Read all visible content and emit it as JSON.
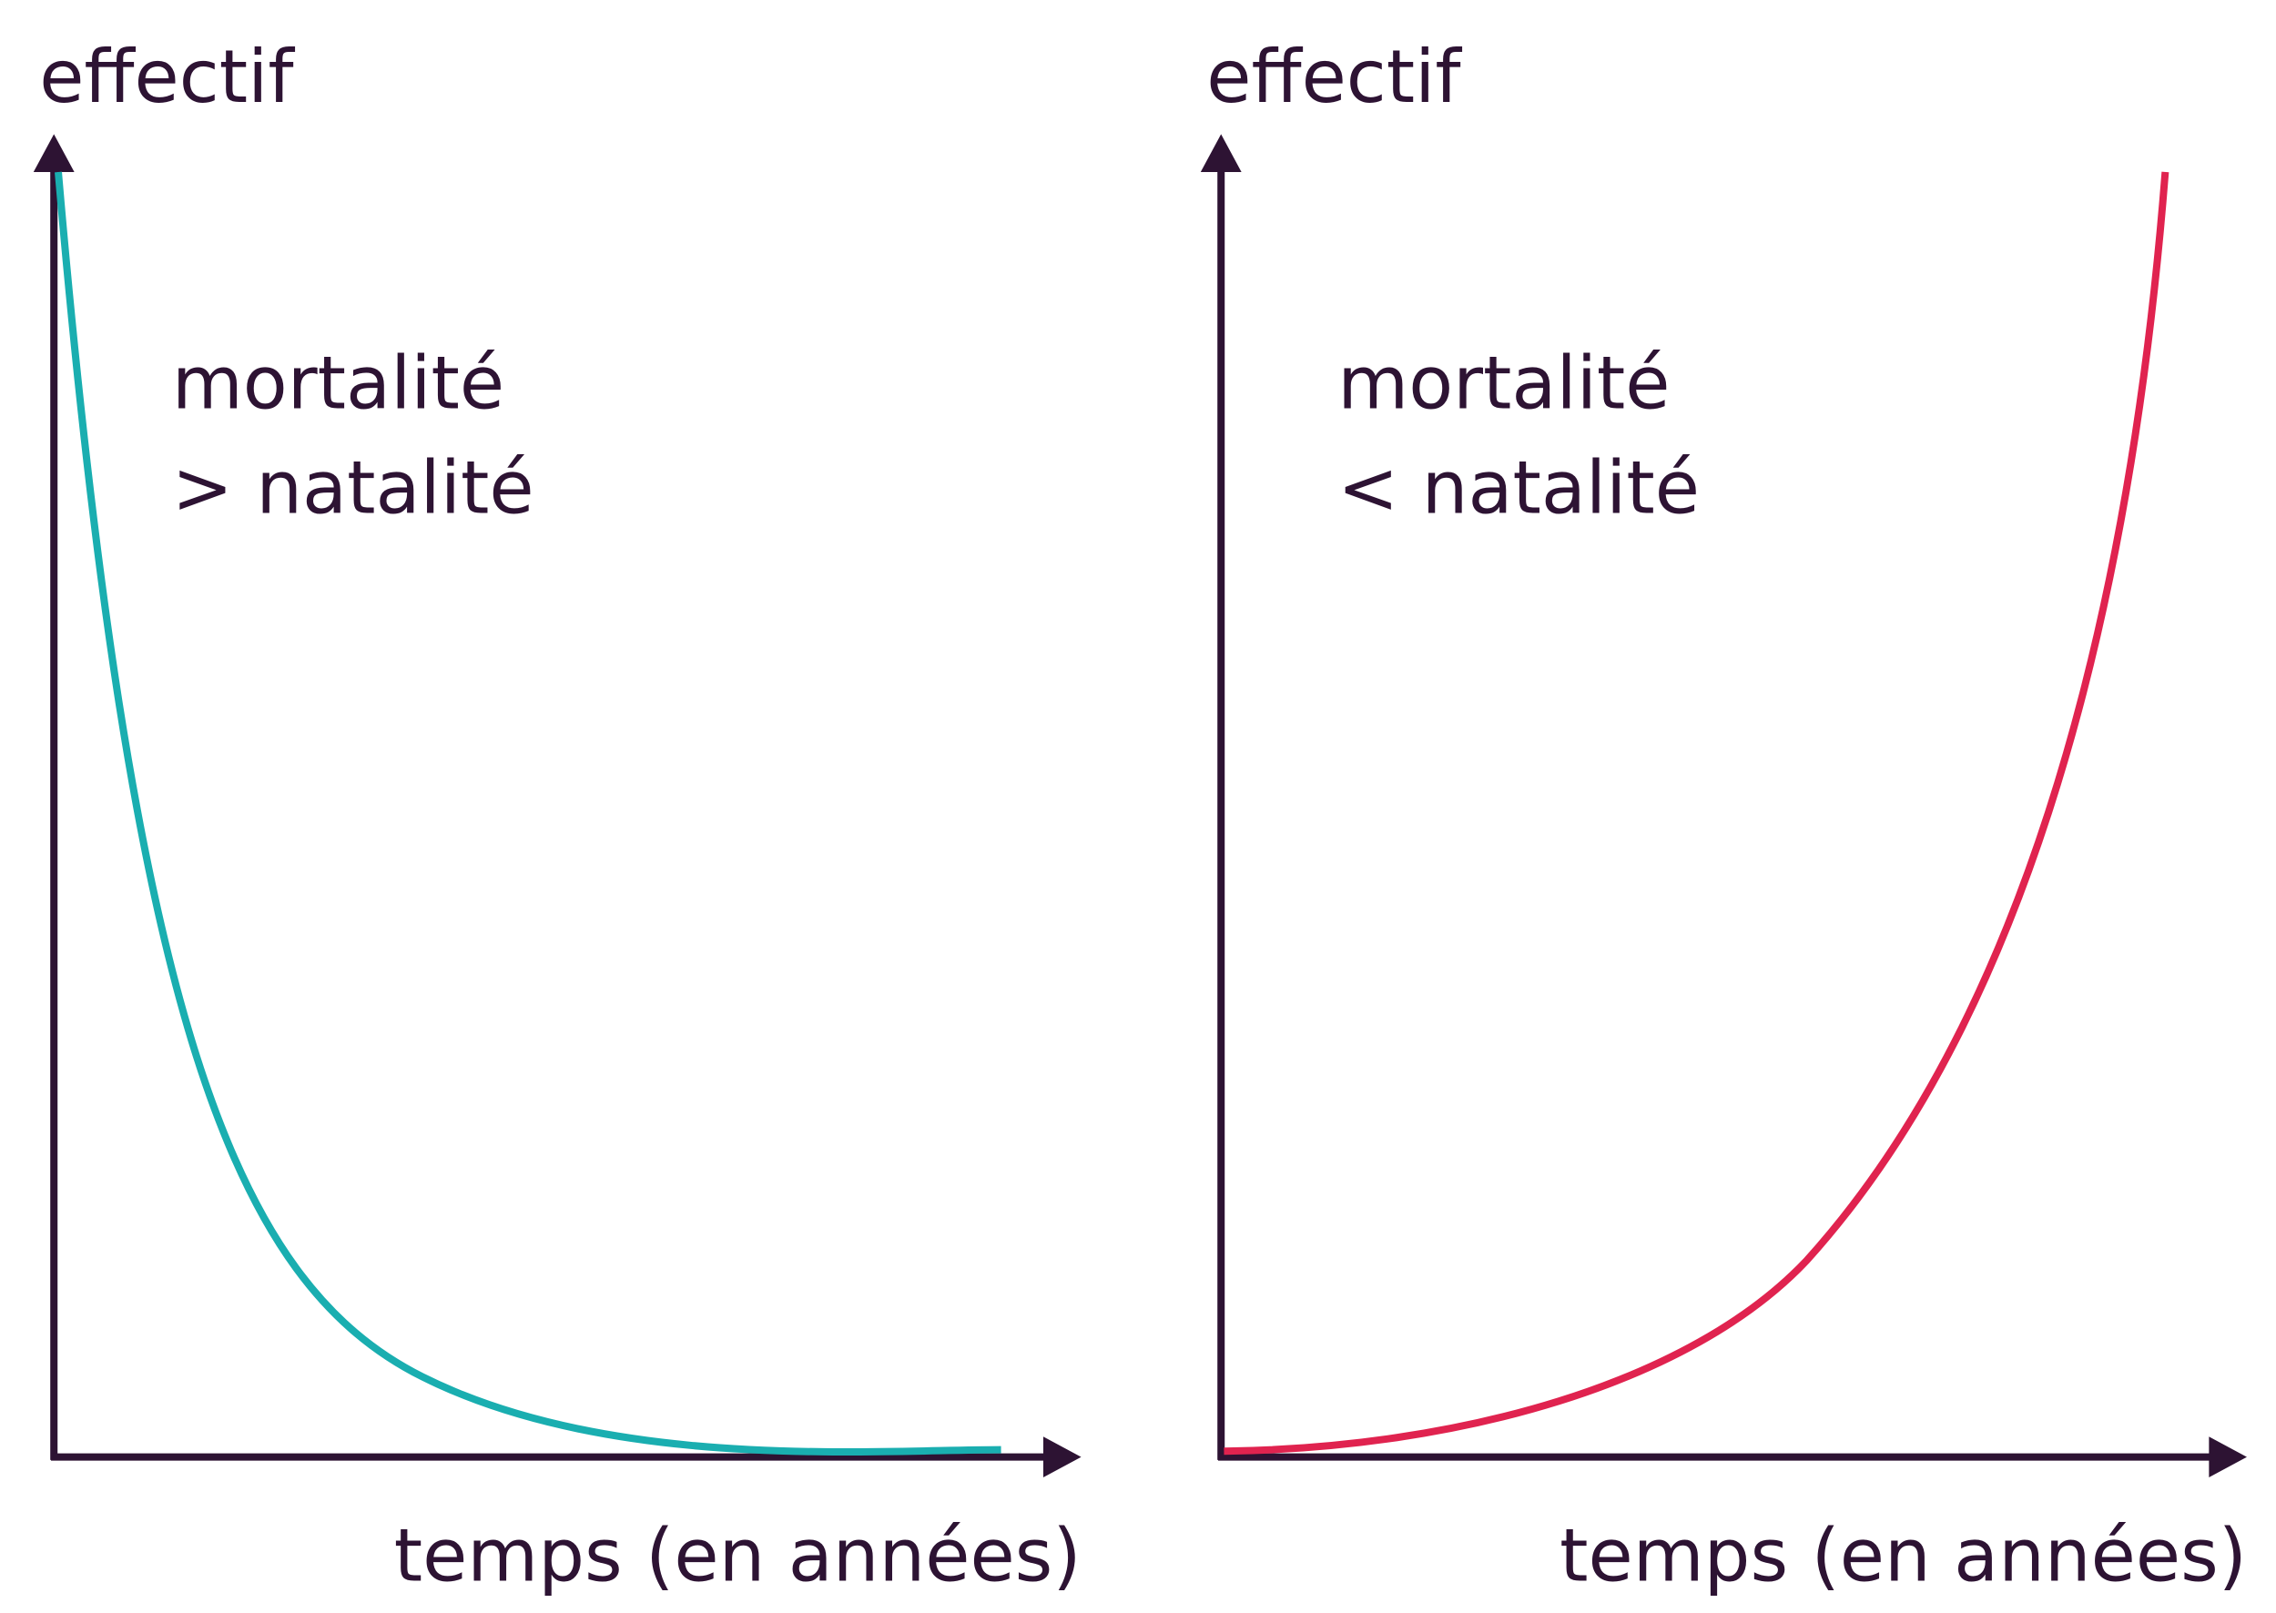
{
  "panels": [
    {
      "y_label": "effectif",
      "x_label": "temps (en années)",
      "annotation": [
        "mortalité",
        "> natalité"
      ]
    },
    {
      "y_label": "effectif",
      "x_label": "temps (en années)",
      "annotation": [
        "mortalité",
        "< natalité"
      ]
    }
  ]
}
